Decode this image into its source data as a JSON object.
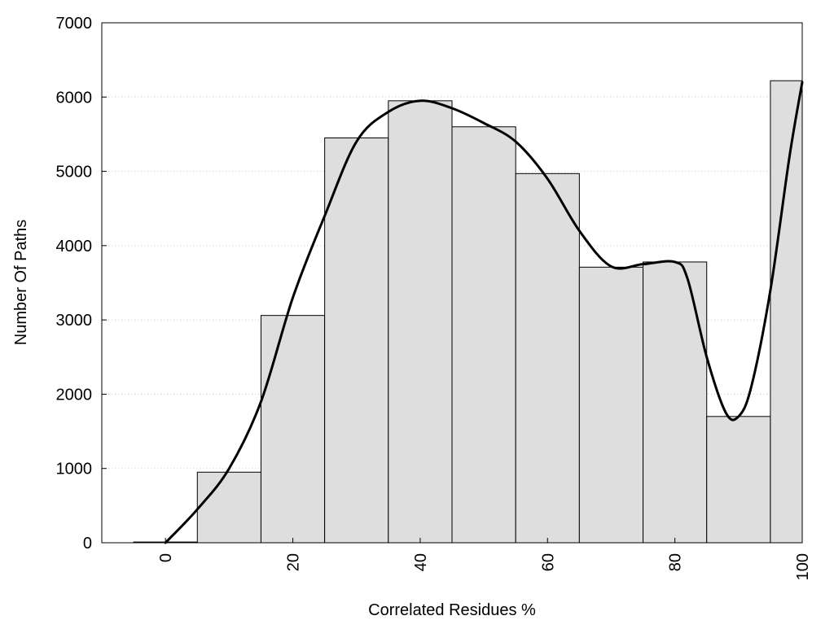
{
  "chart_data": {
    "type": "bar",
    "title": "",
    "xlabel": "Correlated Residues %",
    "ylabel": "Number Of Paths",
    "xlim": [
      -10,
      100
    ],
    "ylim": [
      0,
      7000
    ],
    "x_ticks": [
      0,
      20,
      40,
      60,
      80,
      100
    ],
    "y_ticks": [
      0,
      1000,
      2000,
      3000,
      4000,
      5000,
      6000,
      7000
    ],
    "grid": "horizontal dotted",
    "legend": "none",
    "bins": [
      {
        "start": -5,
        "end": 5,
        "value": 10
      },
      {
        "start": 5,
        "end": 15,
        "value": 950
      },
      {
        "start": 15,
        "end": 25,
        "value": 3060
      },
      {
        "start": 25,
        "end": 35,
        "value": 5450
      },
      {
        "start": 35,
        "end": 45,
        "value": 5950
      },
      {
        "start": 45,
        "end": 55,
        "value": 5600
      },
      {
        "start": 55,
        "end": 65,
        "value": 4970
      },
      {
        "start": 65,
        "end": 75,
        "value": 3710
      },
      {
        "start": 75,
        "end": 85,
        "value": 3780
      },
      {
        "start": 85,
        "end": 95,
        "value": 1700
      },
      {
        "start": 95,
        "end": 100,
        "value": 6220
      }
    ],
    "curve": {
      "x": [
        0,
        5,
        10,
        15,
        20,
        25,
        30,
        35,
        40,
        45,
        50,
        55,
        60,
        65,
        70,
        75,
        80,
        82,
        85,
        88,
        90,
        92,
        95,
        98,
        100
      ],
      "y": [
        0,
        450,
        1000,
        1900,
        3300,
        4400,
        5400,
        5800,
        5950,
        5850,
        5650,
        5400,
        4900,
        4200,
        3720,
        3750,
        3780,
        3550,
        2500,
        1750,
        1700,
        2100,
        3400,
        5200,
        6200
      ]
    },
    "colors": {
      "bar_fill": "#dedede",
      "bar_stroke": "#000000",
      "curve": "#000000"
    }
  }
}
